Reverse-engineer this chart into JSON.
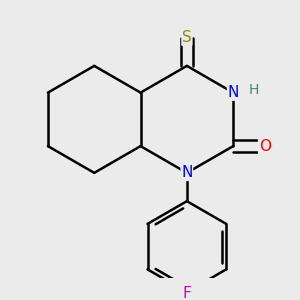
{
  "background_color": "#ebebeb",
  "atom_colors": {
    "S": "#909000",
    "N": "#0000ff",
    "O": "#ff0000",
    "H": "#4a8080",
    "F": "#cc00cc",
    "C": "#000000"
  },
  "bond_color": "#000000",
  "bond_width": 1.8,
  "figsize": [
    3.0,
    3.0
  ],
  "dpi": 100
}
